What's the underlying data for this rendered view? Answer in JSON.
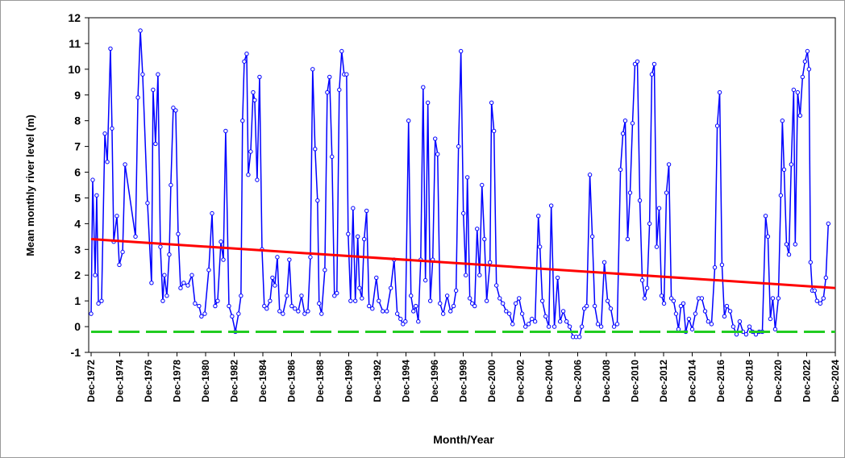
{
  "chart_data": {
    "type": "line",
    "xlabel": "Month/Year",
    "ylabel": "Mean monthly river level (m)",
    "xlim": [
      1972.75,
      2024.92
    ],
    "ylim": [
      -1,
      12
    ],
    "yticks": [
      -1,
      0,
      1,
      2,
      3,
      4,
      5,
      6,
      7,
      8,
      9,
      10,
      11,
      12
    ],
    "xticks": [
      {
        "value": 1972.92,
        "label": "Dec-1972"
      },
      {
        "value": 1974.92,
        "label": "Dec-1974"
      },
      {
        "value": 1976.92,
        "label": "Dec-1976"
      },
      {
        "value": 1978.92,
        "label": "Dec-1978"
      },
      {
        "value": 1980.92,
        "label": "Dec-1980"
      },
      {
        "value": 1982.92,
        "label": "Dec-1982"
      },
      {
        "value": 1984.92,
        "label": "Dec-1984"
      },
      {
        "value": 1986.92,
        "label": "Dec-1986"
      },
      {
        "value": 1988.92,
        "label": "Dec-1988"
      },
      {
        "value": 1990.92,
        "label": "Dec-1990"
      },
      {
        "value": 1992.92,
        "label": "Dec-1992"
      },
      {
        "value": 1994.92,
        "label": "Dec-1994"
      },
      {
        "value": 1996.92,
        "label": "Dec-1996"
      },
      {
        "value": 1998.92,
        "label": "Dec-1998"
      },
      {
        "value": 2000.92,
        "label": "Dec-2000"
      },
      {
        "value": 2002.92,
        "label": "Dec-2002"
      },
      {
        "value": 2004.92,
        "label": "Dec-2004"
      },
      {
        "value": 2006.92,
        "label": "Dec-2006"
      },
      {
        "value": 2008.92,
        "label": "Dec-2008"
      },
      {
        "value": 2010.92,
        "label": "Dec-2010"
      },
      {
        "value": 2012.92,
        "label": "Dec-2012"
      },
      {
        "value": 2014.92,
        "label": "Dec-2014"
      },
      {
        "value": 2016.92,
        "label": "Dec-2016"
      },
      {
        "value": 2018.92,
        "label": "Dec-2018"
      },
      {
        "value": 2020.92,
        "label": "Dec-2020"
      },
      {
        "value": 2022.92,
        "label": "Dec-2022"
      },
      {
        "value": 2024.92,
        "label": "Dec-2024"
      }
    ],
    "series": [
      {
        "color": "#0000ff",
        "markers": true,
        "x": [
          1972.92,
          1973.03,
          1973.2,
          1973.31,
          1973.43,
          1973.65,
          1973.88,
          1974.05,
          1974.27,
          1974.38,
          1974.5,
          1974.72,
          1974.89,
          1975.12,
          1975.29,
          1976.02,
          1976.19,
          1976.36,
          1976.52,
          1976.86,
          1977.14,
          1977.25,
          1977.42,
          1977.59,
          1977.76,
          1977.93,
          1978.04,
          1978.21,
          1978.38,
          1978.49,
          1978.66,
          1978.83,
          1979.0,
          1979.17,
          1979.39,
          1979.68,
          1979.96,
          1980.18,
          1980.46,
          1980.63,
          1980.86,
          1981.14,
          1981.37,
          1981.59,
          1981.76,
          1981.99,
          1982.16,
          1982.32,
          1982.55,
          1982.77,
          1983.0,
          1983.22,
          1983.39,
          1983.5,
          1983.62,
          1983.79,
          1983.9,
          1984.07,
          1984.24,
          1984.35,
          1984.52,
          1984.69,
          1984.86,
          1985.02,
          1985.19,
          1985.42,
          1985.59,
          1985.76,
          1985.93,
          1986.09,
          1986.32,
          1986.6,
          1986.77,
          1986.94,
          1987.16,
          1987.39,
          1987.62,
          1987.84,
          1988.07,
          1988.24,
          1988.4,
          1988.57,
          1988.74,
          1988.85,
          1989.02,
          1989.25,
          1989.42,
          1989.58,
          1989.75,
          1989.92,
          1990.09,
          1990.26,
          1990.43,
          1990.6,
          1990.77,
          1990.88,
          1991.05,
          1991.22,
          1991.38,
          1991.55,
          1991.67,
          1991.84,
          1992.0,
          1992.17,
          1992.34,
          1992.57,
          1992.85,
          1993.02,
          1993.3,
          1993.58,
          1993.86,
          1994.09,
          1994.31,
          1994.54,
          1994.71,
          1994.88,
          1995.1,
          1995.27,
          1995.44,
          1995.61,
          1995.78,
          1995.95,
          1996.12,
          1996.28,
          1996.45,
          1996.62,
          1996.79,
          1996.96,
          1997.13,
          1997.3,
          1997.52,
          1997.8,
          1998.03,
          1998.25,
          1998.42,
          1998.59,
          1998.76,
          1998.93,
          1999.1,
          1999.21,
          1999.38,
          1999.55,
          1999.72,
          1999.89,
          2000.06,
          2000.23,
          2000.4,
          2000.56,
          2000.79,
          2000.9,
          2001.07,
          2001.24,
          2001.47,
          2001.69,
          2001.92,
          2002.14,
          2002.37,
          2002.59,
          2002.82,
          2003.04,
          2003.27,
          2003.49,
          2003.72,
          2003.94,
          2004.17,
          2004.28,
          2004.45,
          2004.68,
          2004.9,
          2005.07,
          2005.29,
          2005.52,
          2005.69,
          2005.91,
          2006.14,
          2006.36,
          2006.59,
          2006.81,
          2007.04,
          2007.21,
          2007.38,
          2007.55,
          2007.77,
          2007.94,
          2008.11,
          2008.33,
          2008.56,
          2008.78,
          2009.01,
          2009.23,
          2009.46,
          2009.68,
          2009.91,
          2010.08,
          2010.24,
          2010.41,
          2010.58,
          2010.75,
          2010.92,
          2011.09,
          2011.26,
          2011.43,
          2011.6,
          2011.77,
          2011.94,
          2012.1,
          2012.27,
          2012.44,
          2012.61,
          2012.78,
          2012.95,
          2013.12,
          2013.29,
          2013.46,
          2013.62,
          2013.79,
          2013.96,
          2014.13,
          2014.3,
          2014.47,
          2014.69,
          2014.92,
          2015.14,
          2015.37,
          2015.59,
          2015.82,
          2016.04,
          2016.27,
          2016.5,
          2016.67,
          2016.84,
          2017.0,
          2017.17,
          2017.34,
          2017.57,
          2017.79,
          2018.02,
          2018.24,
          2018.47,
          2018.69,
          2018.92,
          2019.14,
          2019.37,
          2019.6,
          2019.82,
          2020.05,
          2020.21,
          2020.38,
          2020.55,
          2020.72,
          2020.94,
          2021.11,
          2021.22,
          2021.34,
          2021.51,
          2021.68,
          2021.84,
          2022.01,
          2022.12,
          2022.29,
          2022.46,
          2022.63,
          2022.8,
          2022.97,
          2023.08,
          2023.19,
          2023.31,
          2023.47,
          2023.64,
          2023.87,
          2024.09,
          2024.26,
          2024.43
        ],
        "values": [
          0.5,
          5.7,
          2.0,
          5.1,
          0.9,
          1.0,
          7.5,
          6.4,
          10.8,
          7.7,
          3.3,
          4.3,
          2.4,
          2.9,
          6.3,
          3.5,
          8.9,
          11.5,
          9.8,
          4.8,
          1.7,
          9.2,
          7.1,
          9.8,
          3.1,
          1.0,
          2.0,
          1.2,
          2.8,
          5.5,
          8.5,
          8.4,
          3.6,
          1.5,
          1.7,
          1.6,
          2.0,
          0.9,
          0.8,
          0.4,
          0.5,
          2.2,
          4.4,
          0.8,
          1.0,
          3.3,
          2.6,
          7.6,
          0.8,
          0.4,
          -0.2,
          0.5,
          1.2,
          8.0,
          10.3,
          10.6,
          5.9,
          6.8,
          9.1,
          8.8,
          5.7,
          9.7,
          3.0,
          0.8,
          0.7,
          1.0,
          1.9,
          1.6,
          2.7,
          0.6,
          0.5,
          1.2,
          2.6,
          0.8,
          0.7,
          0.6,
          1.2,
          0.5,
          0.6,
          2.7,
          10.0,
          6.9,
          4.9,
          0.9,
          0.5,
          2.2,
          9.1,
          9.7,
          6.6,
          1.2,
          1.3,
          9.2,
          10.7,
          9.8,
          9.8,
          3.6,
          1.0,
          4.6,
          1.0,
          3.5,
          1.5,
          1.1,
          3.4,
          4.5,
          0.8,
          0.7,
          1.9,
          1.0,
          0.6,
          0.6,
          1.5,
          2.6,
          0.5,
          0.3,
          0.1,
          0.2,
          8.0,
          1.2,
          0.6,
          0.8,
          0.2,
          2.6,
          9.3,
          1.8,
          8.7,
          1.0,
          2.6,
          7.3,
          6.7,
          0.9,
          0.5,
          1.2,
          0.6,
          0.8,
          1.4,
          7.0,
          10.7,
          4.4,
          2.0,
          5.8,
          1.1,
          0.9,
          0.8,
          3.8,
          2.0,
          5.5,
          3.4,
          1.0,
          2.5,
          8.7,
          7.6,
          1.6,
          1.1,
          0.9,
          0.6,
          0.5,
          0.1,
          0.9,
          1.1,
          0.5,
          0.0,
          0.1,
          0.3,
          0.2,
          4.3,
          3.1,
          1.0,
          0.4,
          0.0,
          4.7,
          0.0,
          1.9,
          0.2,
          0.6,
          0.2,
          0.0,
          -0.4,
          -0.4,
          -0.4,
          0.0,
          0.7,
          0.8,
          5.9,
          3.5,
          0.8,
          0.1,
          0.0,
          2.5,
          1.0,
          0.7,
          0.0,
          0.1,
          6.1,
          7.5,
          8.0,
          3.4,
          5.2,
          7.9,
          10.2,
          10.3,
          4.9,
          1.8,
          1.1,
          1.5,
          4.0,
          9.8,
          10.2,
          3.1,
          4.6,
          1.2,
          0.9,
          5.2,
          6.3,
          1.1,
          1.0,
          0.5,
          -0.1,
          0.8,
          0.9,
          -0.2,
          0.3,
          -0.1,
          0.5,
          1.1,
          1.1,
          0.6,
          0.2,
          0.1,
          2.3,
          7.8,
          9.1,
          2.4,
          0.4,
          0.8,
          0.6,
          0.0,
          -0.3,
          0.2,
          -0.2,
          -0.3,
          0.0,
          -0.2,
          -0.3,
          -0.2,
          -0.2,
          4.3,
          3.5,
          0.3,
          1.1,
          -0.1,
          1.1,
          5.1,
          8.0,
          6.1,
          3.2,
          2.8,
          6.3,
          9.2,
          3.2,
          9.1,
          8.2,
          9.7,
          10.3,
          10.7,
          10.0,
          2.5,
          1.4,
          1.4,
          1.0,
          0.9,
          1.1,
          1.9,
          4.0
        ]
      },
      {
        "color": "#ff0000",
        "x": [
          1972.92,
          2024.92
        ],
        "values": [
          3.4,
          1.5
        ]
      },
      {
        "color": "#22cc22",
        "dashed": true,
        "x": [
          1972.92,
          2024.92
        ],
        "values": [
          -0.2,
          -0.2
        ]
      }
    ]
  }
}
